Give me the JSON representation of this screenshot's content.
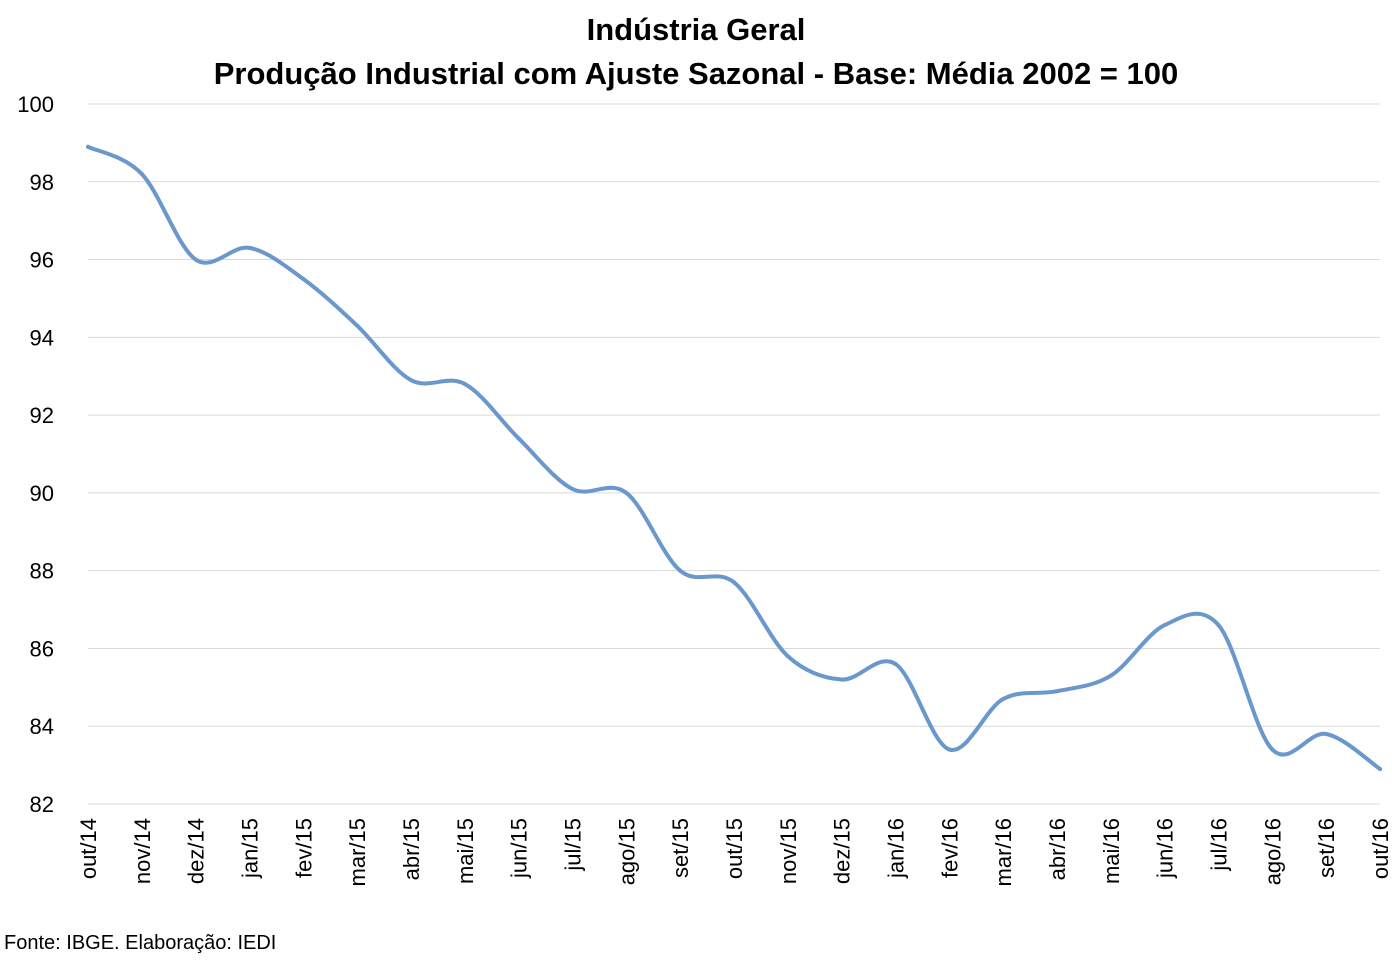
{
  "chart_data": {
    "type": "line",
    "title": "Indústria Geral",
    "subtitle": "Produção Industrial com Ajuste Sazonal - Base: Média 2002 = 100",
    "categories": [
      "out/14",
      "nov/14",
      "dez/14",
      "jan/15",
      "fev/15",
      "mar/15",
      "abr/15",
      "mai/15",
      "jun/15",
      "jul/15",
      "ago/15",
      "set/15",
      "out/15",
      "nov/15",
      "dez/15",
      "jan/16",
      "fev/16",
      "mar/16",
      "abr/16",
      "mai/16",
      "jun/16",
      "jul/16",
      "ago/16",
      "set/16",
      "out/16"
    ],
    "series": [
      {
        "values": [
          98.9,
          98.2,
          96.0,
          96.3,
          95.5,
          94.3,
          92.9,
          92.8,
          91.4,
          90.1,
          90.0,
          88.0,
          87.7,
          85.8,
          85.2,
          85.6,
          83.4,
          84.7,
          84.9,
          85.3,
          86.6,
          86.6,
          83.4,
          83.8,
          82.9
        ]
      }
    ],
    "ylim": [
      82,
      100
    ],
    "yticks": [
      82,
      84,
      86,
      88,
      90,
      92,
      94,
      96,
      98,
      100
    ],
    "grid": true,
    "line_color": "#6a97cc"
  },
  "source": "Fonte: IBGE. Elaboração: IEDI"
}
